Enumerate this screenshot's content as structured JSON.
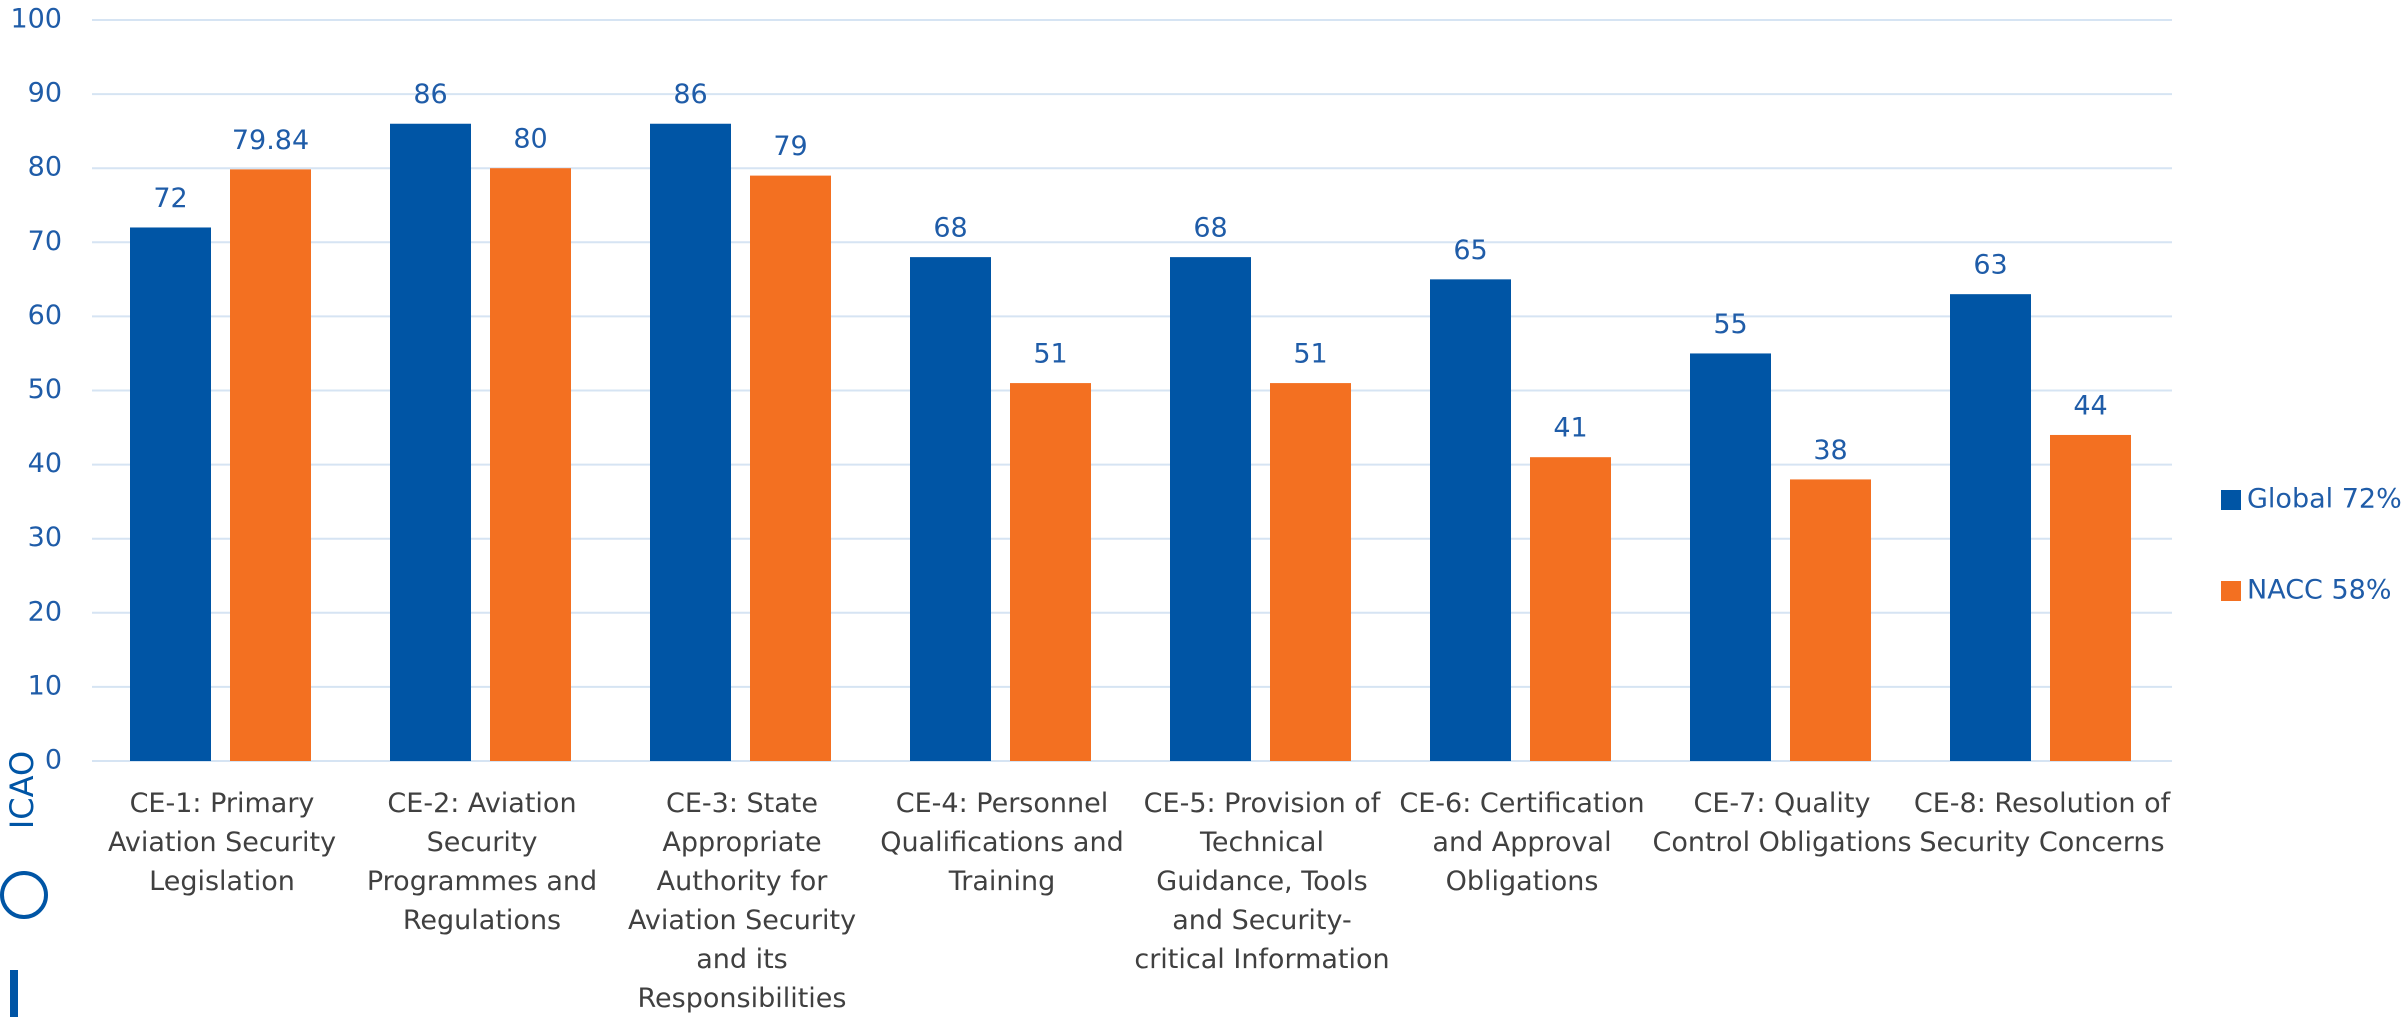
{
  "chart_data": {
    "type": "bar",
    "logo_text": "ICAO",
    "categories": [
      "CE-1: Primary Aviation Security Legislation",
      "CE-2: Aviation Security Programmes and Regulations",
      "CE-3: State Appropriate Authority for Aviation Security and its Responsibilities",
      "CE-4: Personnel Qualifications and Training",
      "CE-5: Provision of Technical Guidance, Tools and Security-critical Information",
      "CE-6: Certification and Approval Obligations",
      "CE-7: Quality Control Obligations",
      "CE-8: Resolution of Security Concerns"
    ],
    "series": [
      {
        "name": "Global 72%",
        "color": "#0055a5",
        "values": [
          72,
          86,
          86,
          68,
          68,
          65,
          55,
          63
        ]
      },
      {
        "name": "NACC 58%",
        "color": "#f37021",
        "values": [
          79.84,
          80,
          79,
          51,
          51,
          41,
          38,
          44
        ]
      }
    ],
    "ylim": [
      0,
      100
    ],
    "yticks": [
      0,
      10,
      20,
      30,
      40,
      50,
      60,
      70,
      80,
      90,
      100
    ],
    "grid": true,
    "legend": "right"
  }
}
